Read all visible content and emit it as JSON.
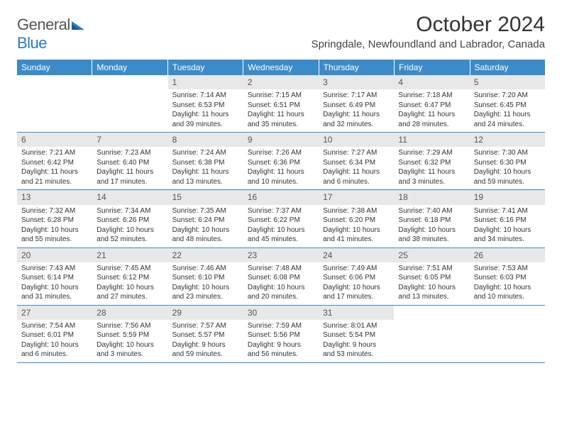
{
  "logo": {
    "text_general": "General",
    "text_blue": "Blue"
  },
  "title": "October 2024",
  "location": "Springdale, Newfoundland and Labrador, Canada",
  "colors": {
    "header_blue": "#3c8bc9",
    "daynum_bg": "#e8e8e8",
    "logo_blue": "#2b7bbf"
  },
  "weekdays": [
    "Sunday",
    "Monday",
    "Tuesday",
    "Wednesday",
    "Thursday",
    "Friday",
    "Saturday"
  ],
  "weeks": [
    [
      {
        "n": "",
        "sr": "",
        "ss": "",
        "dl": ""
      },
      {
        "n": "",
        "sr": "",
        "ss": "",
        "dl": ""
      },
      {
        "n": "1",
        "sr": "Sunrise: 7:14 AM",
        "ss": "Sunset: 6:53 PM",
        "dl": "Daylight: 11 hours and 39 minutes."
      },
      {
        "n": "2",
        "sr": "Sunrise: 7:15 AM",
        "ss": "Sunset: 6:51 PM",
        "dl": "Daylight: 11 hours and 35 minutes."
      },
      {
        "n": "3",
        "sr": "Sunrise: 7:17 AM",
        "ss": "Sunset: 6:49 PM",
        "dl": "Daylight: 11 hours and 32 minutes."
      },
      {
        "n": "4",
        "sr": "Sunrise: 7:18 AM",
        "ss": "Sunset: 6:47 PM",
        "dl": "Daylight: 11 hours and 28 minutes."
      },
      {
        "n": "5",
        "sr": "Sunrise: 7:20 AM",
        "ss": "Sunset: 6:45 PM",
        "dl": "Daylight: 11 hours and 24 minutes."
      }
    ],
    [
      {
        "n": "6",
        "sr": "Sunrise: 7:21 AM",
        "ss": "Sunset: 6:42 PM",
        "dl": "Daylight: 11 hours and 21 minutes."
      },
      {
        "n": "7",
        "sr": "Sunrise: 7:23 AM",
        "ss": "Sunset: 6:40 PM",
        "dl": "Daylight: 11 hours and 17 minutes."
      },
      {
        "n": "8",
        "sr": "Sunrise: 7:24 AM",
        "ss": "Sunset: 6:38 PM",
        "dl": "Daylight: 11 hours and 13 minutes."
      },
      {
        "n": "9",
        "sr": "Sunrise: 7:26 AM",
        "ss": "Sunset: 6:36 PM",
        "dl": "Daylight: 11 hours and 10 minutes."
      },
      {
        "n": "10",
        "sr": "Sunrise: 7:27 AM",
        "ss": "Sunset: 6:34 PM",
        "dl": "Daylight: 11 hours and 6 minutes."
      },
      {
        "n": "11",
        "sr": "Sunrise: 7:29 AM",
        "ss": "Sunset: 6:32 PM",
        "dl": "Daylight: 11 hours and 3 minutes."
      },
      {
        "n": "12",
        "sr": "Sunrise: 7:30 AM",
        "ss": "Sunset: 6:30 PM",
        "dl": "Daylight: 10 hours and 59 minutes."
      }
    ],
    [
      {
        "n": "13",
        "sr": "Sunrise: 7:32 AM",
        "ss": "Sunset: 6:28 PM",
        "dl": "Daylight: 10 hours and 55 minutes."
      },
      {
        "n": "14",
        "sr": "Sunrise: 7:34 AM",
        "ss": "Sunset: 6:26 PM",
        "dl": "Daylight: 10 hours and 52 minutes."
      },
      {
        "n": "15",
        "sr": "Sunrise: 7:35 AM",
        "ss": "Sunset: 6:24 PM",
        "dl": "Daylight: 10 hours and 48 minutes."
      },
      {
        "n": "16",
        "sr": "Sunrise: 7:37 AM",
        "ss": "Sunset: 6:22 PM",
        "dl": "Daylight: 10 hours and 45 minutes."
      },
      {
        "n": "17",
        "sr": "Sunrise: 7:38 AM",
        "ss": "Sunset: 6:20 PM",
        "dl": "Daylight: 10 hours and 41 minutes."
      },
      {
        "n": "18",
        "sr": "Sunrise: 7:40 AM",
        "ss": "Sunset: 6:18 PM",
        "dl": "Daylight: 10 hours and 38 minutes."
      },
      {
        "n": "19",
        "sr": "Sunrise: 7:41 AM",
        "ss": "Sunset: 6:16 PM",
        "dl": "Daylight: 10 hours and 34 minutes."
      }
    ],
    [
      {
        "n": "20",
        "sr": "Sunrise: 7:43 AM",
        "ss": "Sunset: 6:14 PM",
        "dl": "Daylight: 10 hours and 31 minutes."
      },
      {
        "n": "21",
        "sr": "Sunrise: 7:45 AM",
        "ss": "Sunset: 6:12 PM",
        "dl": "Daylight: 10 hours and 27 minutes."
      },
      {
        "n": "22",
        "sr": "Sunrise: 7:46 AM",
        "ss": "Sunset: 6:10 PM",
        "dl": "Daylight: 10 hours and 23 minutes."
      },
      {
        "n": "23",
        "sr": "Sunrise: 7:48 AM",
        "ss": "Sunset: 6:08 PM",
        "dl": "Daylight: 10 hours and 20 minutes."
      },
      {
        "n": "24",
        "sr": "Sunrise: 7:49 AM",
        "ss": "Sunset: 6:06 PM",
        "dl": "Daylight: 10 hours and 17 minutes."
      },
      {
        "n": "25",
        "sr": "Sunrise: 7:51 AM",
        "ss": "Sunset: 6:05 PM",
        "dl": "Daylight: 10 hours and 13 minutes."
      },
      {
        "n": "26",
        "sr": "Sunrise: 7:53 AM",
        "ss": "Sunset: 6:03 PM",
        "dl": "Daylight: 10 hours and 10 minutes."
      }
    ],
    [
      {
        "n": "27",
        "sr": "Sunrise: 7:54 AM",
        "ss": "Sunset: 6:01 PM",
        "dl": "Daylight: 10 hours and 6 minutes."
      },
      {
        "n": "28",
        "sr": "Sunrise: 7:56 AM",
        "ss": "Sunset: 5:59 PM",
        "dl": "Daylight: 10 hours and 3 minutes."
      },
      {
        "n": "29",
        "sr": "Sunrise: 7:57 AM",
        "ss": "Sunset: 5:57 PM",
        "dl": "Daylight: 9 hours and 59 minutes."
      },
      {
        "n": "30",
        "sr": "Sunrise: 7:59 AM",
        "ss": "Sunset: 5:56 PM",
        "dl": "Daylight: 9 hours and 56 minutes."
      },
      {
        "n": "31",
        "sr": "Sunrise: 8:01 AM",
        "ss": "Sunset: 5:54 PM",
        "dl": "Daylight: 9 hours and 53 minutes."
      },
      {
        "n": "",
        "sr": "",
        "ss": "",
        "dl": ""
      },
      {
        "n": "",
        "sr": "",
        "ss": "",
        "dl": ""
      }
    ]
  ]
}
